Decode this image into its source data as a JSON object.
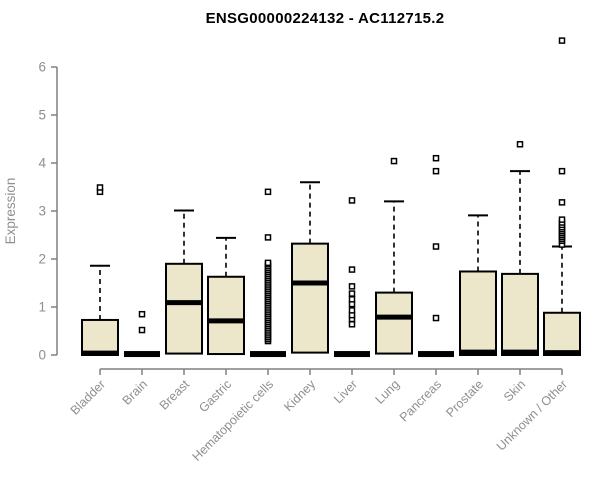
{
  "chart_data": {
    "type": "boxplot",
    "title": "ENSG00000224132 - AC112715.2",
    "xlabel": "",
    "ylabel": "Expression",
    "ylim": [
      0,
      6
    ],
    "yticks": [
      0,
      1,
      2,
      3,
      4,
      5,
      6
    ],
    "grid": false,
    "legend": false,
    "categories": [
      "Bladder",
      "Brain",
      "Breast",
      "Gastric",
      "Hematopoietic cells",
      "Kidney",
      "Liver",
      "Lung",
      "Pancreas",
      "Prostate",
      "Skin",
      "Unknown / Other"
    ],
    "boxes": [
      {
        "category": "Bladder",
        "q1": 0,
        "median": 0.04,
        "q3": 0.73,
        "whisker_low": 0,
        "whisker_high": 1.86,
        "outliers": [
          3.4,
          3.49
        ]
      },
      {
        "category": "Brain",
        "q1": 0,
        "median": 0.02,
        "q3": 0.03,
        "whisker_low": 0,
        "whisker_high": 0.03,
        "outliers": [
          0.52,
          0.85
        ]
      },
      {
        "category": "Breast",
        "q1": 0.03,
        "median": 1.09,
        "q3": 1.9,
        "whisker_low": 0.03,
        "whisker_high": 3.01,
        "outliers": []
      },
      {
        "category": "Gastric",
        "q1": 0.02,
        "median": 0.71,
        "q3": 1.63,
        "whisker_low": 0.02,
        "whisker_high": 2.44,
        "outliers": []
      },
      {
        "category": "Hematopoietic cells",
        "q1": 0,
        "median": 0.02,
        "q3": 0.03,
        "whisker_low": 0,
        "whisker_high": 0.03,
        "outliers": [
          0.29,
          0.33,
          0.37,
          0.41,
          0.45,
          0.49,
          0.53,
          0.57,
          0.61,
          0.65,
          0.69,
          0.73,
          0.77,
          0.81,
          0.85,
          0.89,
          0.93,
          0.97,
          1.01,
          1.05,
          1.09,
          1.13,
          1.17,
          1.21,
          1.25,
          1.29,
          1.33,
          1.37,
          1.41,
          1.45,
          1.49,
          1.53,
          1.57,
          1.61,
          1.65,
          1.69,
          1.73,
          1.77,
          1.81,
          1.85,
          1.89,
          1.92,
          2.45,
          3.4
        ]
      },
      {
        "category": "Kidney",
        "q1": 0.05,
        "median": 1.5,
        "q3": 2.32,
        "whisker_low": 0.05,
        "whisker_high": 3.6,
        "outliers": []
      },
      {
        "category": "Liver",
        "q1": 0,
        "median": 0.02,
        "q3": 0.03,
        "whisker_low": 0,
        "whisker_high": 0.03,
        "outliers": [
          0.64,
          0.75,
          0.83,
          0.93,
          1.06,
          1.16,
          1.28,
          1.43,
          1.78,
          3.22
        ]
      },
      {
        "category": "Lung",
        "q1": 0.03,
        "median": 0.79,
        "q3": 1.3,
        "whisker_low": 0.03,
        "whisker_high": 3.2,
        "outliers": [
          4.04
        ]
      },
      {
        "category": "Pancreas",
        "q1": 0,
        "median": 0.02,
        "q3": 0.03,
        "whisker_low": 0,
        "whisker_high": 0.03,
        "outliers": [
          0.77,
          2.26,
          3.83,
          4.1
        ]
      },
      {
        "category": "Prostate",
        "q1": 0,
        "median": 0.06,
        "q3": 1.74,
        "whisker_low": 0,
        "whisker_high": 2.91,
        "outliers": []
      },
      {
        "category": "Skin",
        "q1": 0,
        "median": 0.06,
        "q3": 1.69,
        "whisker_low": 0,
        "whisker_high": 3.83,
        "outliers": [
          4.39
        ]
      },
      {
        "category": "Unknown / Other",
        "q1": 0,
        "median": 0.05,
        "q3": 0.88,
        "whisker_low": 0,
        "whisker_high": 2.26,
        "outliers": [
          2.3,
          2.38,
          2.42,
          2.46,
          2.5,
          2.54,
          2.58,
          2.62,
          2.66,
          2.71,
          2.76,
          2.82,
          3.18,
          3.83,
          6.55
        ]
      }
    ],
    "colors": {
      "box_fill": "#ece7cb",
      "box_border": "#000000",
      "median": "#000000",
      "whisker": "#000000",
      "axis_line": "#808080",
      "axis_text": "#8f8f8f",
      "title_text": "#000000",
      "outlier_fill": "#ffffff",
      "background": "#ffffff"
    }
  }
}
